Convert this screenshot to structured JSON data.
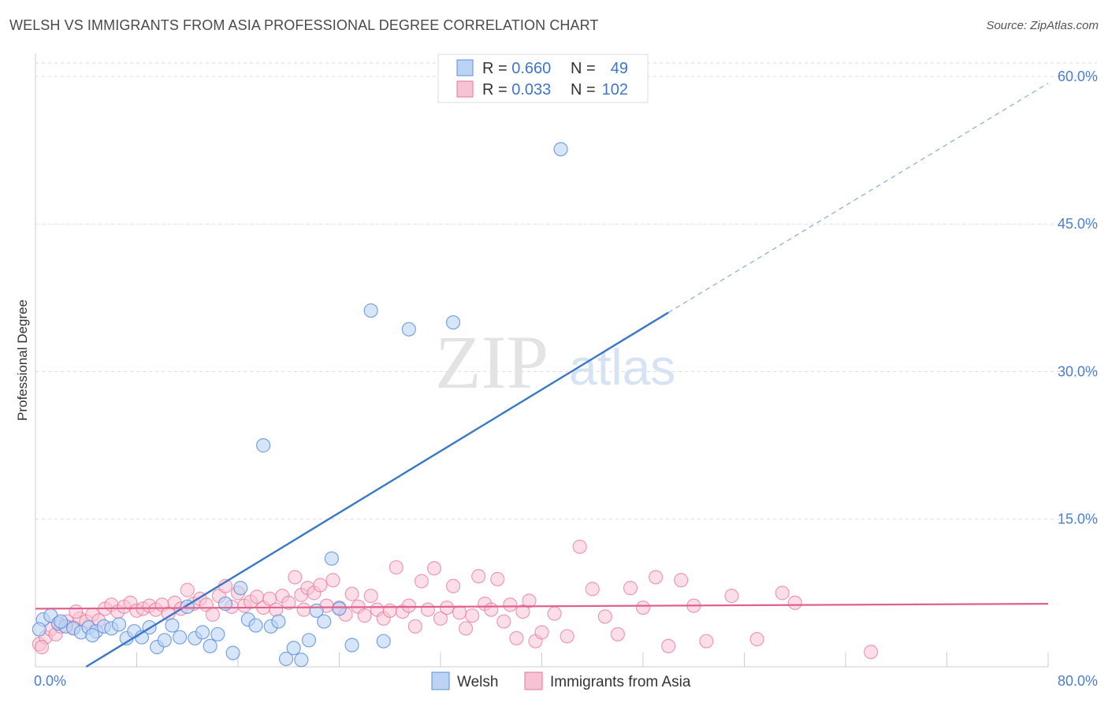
{
  "title": "WELSH VS IMMIGRANTS FROM ASIA PROFESSIONAL DEGREE CORRELATION CHART",
  "source": "Source: ZipAtlas.com",
  "watermark": {
    "zip": "ZIP",
    "atlas": "atlas"
  },
  "colors": {
    "welsh": "#5b8fd9",
    "welsh_fill": "#bcd3f3",
    "asia": "#e7769b",
    "asia_fill": "#f7c3d4",
    "tick": "#4a7fd0"
  },
  "chart_data": {
    "type": "scatter",
    "title": "WELSH VS IMMIGRANTS FROM ASIA PROFESSIONAL DEGREE CORRELATION CHART",
    "ylabel": "Professional Degree",
    "xlabel": "",
    "xlim": [
      0,
      80
    ],
    "ylim": [
      0,
      62
    ],
    "x_tick_labels": [
      "0.0%",
      "80.0%"
    ],
    "y_ticks": [
      15,
      30,
      45,
      60
    ],
    "y_tick_labels": [
      "15.0%",
      "30.0%",
      "45.0%",
      "60.0%"
    ],
    "legend": {
      "rows": [
        {
          "r_label": "R =",
          "r": "0.660",
          "n_label": "N =",
          "n": "49"
        },
        {
          "r_label": "R =",
          "r": "0.033",
          "n_label": "N =",
          "n": "102"
        }
      ],
      "bottom": [
        "Welsh",
        "Immigrants from Asia"
      ]
    },
    "series": [
      {
        "name": "Welsh",
        "regression": {
          "x0": 4,
          "y0": 0,
          "x1": 50,
          "y1": 36,
          "dash_to_x": 80,
          "dash_to_y": 59.3
        },
        "points": [
          [
            0.6,
            4.8
          ],
          [
            1.2,
            5.2
          ],
          [
            1.8,
            4.4
          ],
          [
            2.4,
            4.1
          ],
          [
            3.0,
            3.9
          ],
          [
            3.6,
            3.5
          ],
          [
            4.2,
            4.0
          ],
          [
            4.8,
            3.6
          ],
          [
            5.4,
            4.1
          ],
          [
            6.0,
            3.9
          ],
          [
            6.6,
            4.3
          ],
          [
            7.2,
            2.9
          ],
          [
            7.8,
            3.6
          ],
          [
            8.4,
            3.0
          ],
          [
            9.0,
            4.0
          ],
          [
            9.6,
            2.0
          ],
          [
            10.2,
            2.7
          ],
          [
            10.8,
            4.2
          ],
          [
            11.4,
            3.0
          ],
          [
            12.0,
            6.1
          ],
          [
            12.6,
            2.9
          ],
          [
            13.2,
            3.5
          ],
          [
            13.8,
            2.1
          ],
          [
            14.4,
            3.3
          ],
          [
            15.0,
            6.4
          ],
          [
            15.6,
            1.4
          ],
          [
            16.2,
            8.0
          ],
          [
            16.8,
            4.8
          ],
          [
            17.4,
            4.2
          ],
          [
            18.0,
            22.5
          ],
          [
            18.6,
            4.1
          ],
          [
            19.2,
            4.6
          ],
          [
            19.8,
            0.8
          ],
          [
            20.4,
            1.9
          ],
          [
            21.0,
            0.7
          ],
          [
            21.6,
            2.7
          ],
          [
            22.2,
            5.7
          ],
          [
            22.8,
            4.6
          ],
          [
            23.4,
            11.0
          ],
          [
            24.0,
            5.9
          ],
          [
            25.0,
            2.2
          ],
          [
            26.5,
            36.2
          ],
          [
            27.5,
            2.6
          ],
          [
            29.5,
            34.3
          ],
          [
            33.0,
            35.0
          ],
          [
            41.5,
            52.6
          ],
          [
            0.3,
            3.8
          ],
          [
            2.0,
            4.6
          ],
          [
            4.5,
            3.2
          ]
        ]
      },
      {
        "name": "Immigrants from Asia",
        "regression": {
          "x0": 0,
          "y0": 5.9,
          "x1": 80,
          "y1": 6.4
        },
        "points": [
          [
            0.3,
            2.3
          ],
          [
            0.8,
            3.0
          ],
          [
            1.2,
            3.8
          ],
          [
            1.6,
            3.3
          ],
          [
            2.0,
            4.1
          ],
          [
            2.5,
            4.6
          ],
          [
            3.0,
            4.0
          ],
          [
            3.5,
            4.9
          ],
          [
            4.0,
            4.6
          ],
          [
            4.5,
            5.3
          ],
          [
            5.0,
            4.7
          ],
          [
            5.5,
            5.9
          ],
          [
            6.0,
            6.3
          ],
          [
            6.5,
            5.6
          ],
          [
            7.0,
            6.1
          ],
          [
            7.5,
            6.5
          ],
          [
            8.0,
            5.7
          ],
          [
            8.5,
            5.9
          ],
          [
            9.0,
            6.2
          ],
          [
            9.5,
            5.8
          ],
          [
            10.0,
            6.3
          ],
          [
            10.5,
            5.4
          ],
          [
            11.0,
            6.5
          ],
          [
            11.5,
            5.9
          ],
          [
            12.0,
            7.8
          ],
          [
            12.5,
            6.4
          ],
          [
            13.0,
            6.9
          ],
          [
            13.5,
            6.3
          ],
          [
            14.0,
            5.3
          ],
          [
            14.5,
            7.2
          ],
          [
            15.0,
            8.2
          ],
          [
            15.5,
            6.1
          ],
          [
            16.0,
            7.5
          ],
          [
            16.5,
            6.2
          ],
          [
            17.0,
            6.6
          ],
          [
            17.5,
            7.1
          ],
          [
            18.0,
            6.0
          ],
          [
            18.5,
            6.9
          ],
          [
            19.0,
            5.8
          ],
          [
            19.5,
            7.2
          ],
          [
            20.0,
            6.5
          ],
          [
            20.5,
            9.1
          ],
          [
            21.0,
            7.3
          ],
          [
            21.5,
            8.0
          ],
          [
            22.0,
            7.5
          ],
          [
            22.5,
            8.3
          ],
          [
            23.0,
            6.2
          ],
          [
            23.5,
            8.8
          ],
          [
            24.0,
            6.0
          ],
          [
            24.5,
            5.3
          ],
          [
            25.0,
            7.4
          ],
          [
            25.5,
            6.1
          ],
          [
            26.0,
            5.2
          ],
          [
            26.5,
            7.2
          ],
          [
            27.0,
            5.8
          ],
          [
            27.5,
            4.9
          ],
          [
            28.0,
            5.7
          ],
          [
            28.5,
            10.1
          ],
          [
            29.0,
            5.6
          ],
          [
            29.5,
            6.2
          ],
          [
            30.0,
            4.1
          ],
          [
            30.5,
            8.7
          ],
          [
            31.0,
            5.8
          ],
          [
            31.5,
            10.0
          ],
          [
            32.0,
            4.9
          ],
          [
            32.5,
            6.0
          ],
          [
            33.0,
            8.2
          ],
          [
            33.5,
            5.5
          ],
          [
            34.0,
            3.9
          ],
          [
            34.5,
            5.2
          ],
          [
            35.0,
            9.2
          ],
          [
            35.5,
            6.4
          ],
          [
            36.0,
            5.8
          ],
          [
            36.5,
            8.9
          ],
          [
            37.0,
            4.6
          ],
          [
            37.5,
            6.3
          ],
          [
            38.0,
            2.9
          ],
          [
            38.5,
            5.6
          ],
          [
            39.0,
            6.7
          ],
          [
            39.5,
            2.6
          ],
          [
            40.0,
            3.5
          ],
          [
            41.0,
            5.4
          ],
          [
            42.0,
            3.1
          ],
          [
            43.0,
            12.2
          ],
          [
            44.0,
            7.9
          ],
          [
            45.0,
            5.1
          ],
          [
            46.0,
            3.3
          ],
          [
            47.0,
            8.0
          ],
          [
            48.0,
            6.0
          ],
          [
            49.0,
            9.1
          ],
          [
            50.0,
            2.1
          ],
          [
            51.0,
            8.8
          ],
          [
            52.0,
            6.2
          ],
          [
            53.0,
            2.6
          ],
          [
            55.0,
            7.2
          ],
          [
            57.0,
            2.8
          ],
          [
            59.0,
            7.5
          ],
          [
            60.0,
            6.5
          ],
          [
            66.0,
            1.5
          ],
          [
            0.5,
            2.0
          ],
          [
            3.2,
            5.6
          ],
          [
            21.2,
            5.8
          ]
        ]
      }
    ]
  }
}
